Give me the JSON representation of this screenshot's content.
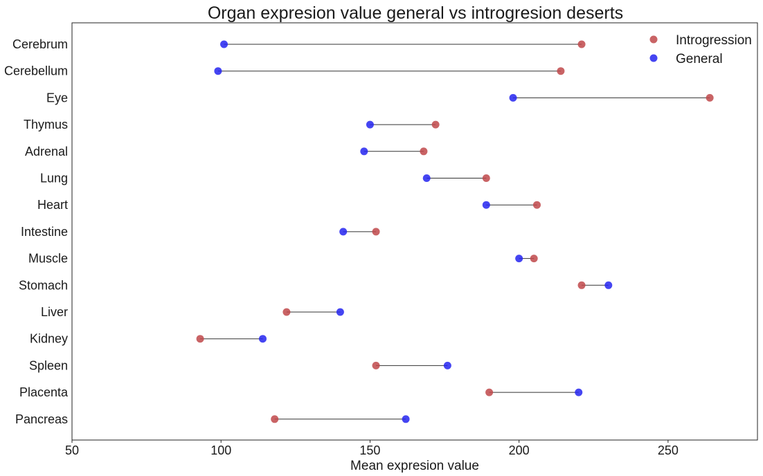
{
  "chart_data": {
    "type": "dumbbell",
    "title": "Organ expresion value general vs introgresion deserts",
    "xlabel": "Mean expresion value",
    "ylabel": "",
    "xlim": [
      50,
      280
    ],
    "xticks": [
      50,
      100,
      150,
      200,
      250
    ],
    "xtick_labels": [
      "50",
      "100",
      "150",
      "200",
      "250"
    ],
    "grid": false,
    "legend_position": "top-right",
    "categories": [
      "Cerebrum",
      "Cerebellum",
      "Eye",
      "Thymus",
      "Adrenal",
      "Lung",
      "Heart",
      "Intestine",
      "Muscle",
      "Stomach",
      "Liver",
      "Kidney",
      "Spleen",
      "Placenta",
      "Pancreas"
    ],
    "series": [
      {
        "name": "Introgression",
        "color": "#c0484a",
        "values": [
          221,
          214,
          264,
          172,
          168,
          189,
          206,
          152,
          205,
          221,
          122,
          93,
          152,
          190,
          118
        ]
      },
      {
        "name": "General",
        "color": "#2424f0",
        "values": [
          101,
          99,
          198,
          150,
          148,
          169,
          189,
          141,
          200,
          230,
          140,
          114,
          176,
          220,
          162
        ]
      }
    ]
  }
}
